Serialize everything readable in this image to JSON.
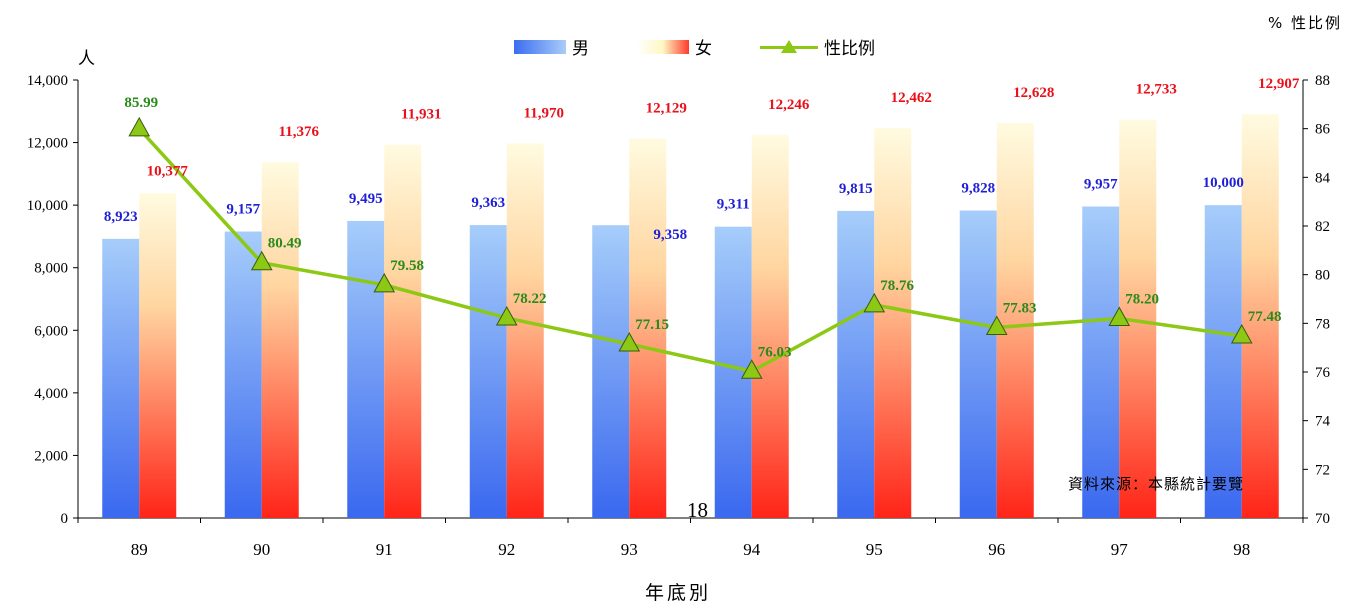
{
  "chart_data": {
    "type": "bar",
    "categories": [
      "89",
      "90",
      "91",
      "92",
      "93",
      "94",
      "95",
      "96",
      "97",
      "98"
    ],
    "series": [
      {
        "name": "男",
        "type": "bar",
        "axis": "left",
        "values": [
          8923,
          9157,
          9495,
          9363,
          9358,
          9311,
          9815,
          9828,
          9957,
          10000
        ],
        "labels": [
          "8,923",
          "9,157",
          "9,495",
          "9,363",
          "9,358",
          "9,311",
          "9,815",
          "9,828",
          "9,957",
          "10,000"
        ],
        "color": "#3b6df0"
      },
      {
        "name": "女",
        "type": "bar",
        "axis": "left",
        "values": [
          10377,
          11376,
          11931,
          11970,
          12129,
          12246,
          12462,
          12628,
          12733,
          12907
        ],
        "labels": [
          "10,377",
          "11,376",
          "11,931",
          "11,970",
          "12,129",
          "12,246",
          "12,462",
          "12,628",
          "12,733",
          "12,907"
        ],
        "color": "#ff3b2b"
      },
      {
        "name": "性比例",
        "type": "line",
        "axis": "right",
        "values": [
          85.99,
          80.49,
          79.58,
          78.22,
          77.15,
          76.03,
          78.76,
          77.83,
          78.2,
          77.48
        ],
        "labels": [
          "85.99",
          "80.49",
          "79.58",
          "78.22",
          "77.15",
          "76.03",
          "78.76",
          "77.83",
          "78.20",
          "77.48"
        ],
        "color": "#8cc814"
      }
    ],
    "xlabel": "年底別",
    "ylabel_left": "人",
    "ylabel_right": "% 性比例",
    "ylim_left": [
      0,
      14000
    ],
    "ylim_right": [
      70,
      88
    ],
    "left_ticks": [
      "0",
      "2,000",
      "4,000",
      "6,000",
      "8,000",
      "10,000",
      "12,000",
      "14,000"
    ],
    "right_ticks": [
      "70",
      "72",
      "74",
      "76",
      "78",
      "80",
      "82",
      "84",
      "86",
      "88"
    ],
    "grid": false,
    "legend_position": "top-center",
    "label_colors": {
      "male": "#1f1fd6",
      "female": "#e8101a",
      "ratio": "#2a8a1a"
    }
  },
  "legend": {
    "male": "男",
    "female": "女",
    "ratio": "性比例"
  },
  "source": "資料來源：本縣統計要覽",
  "page_number": "18"
}
